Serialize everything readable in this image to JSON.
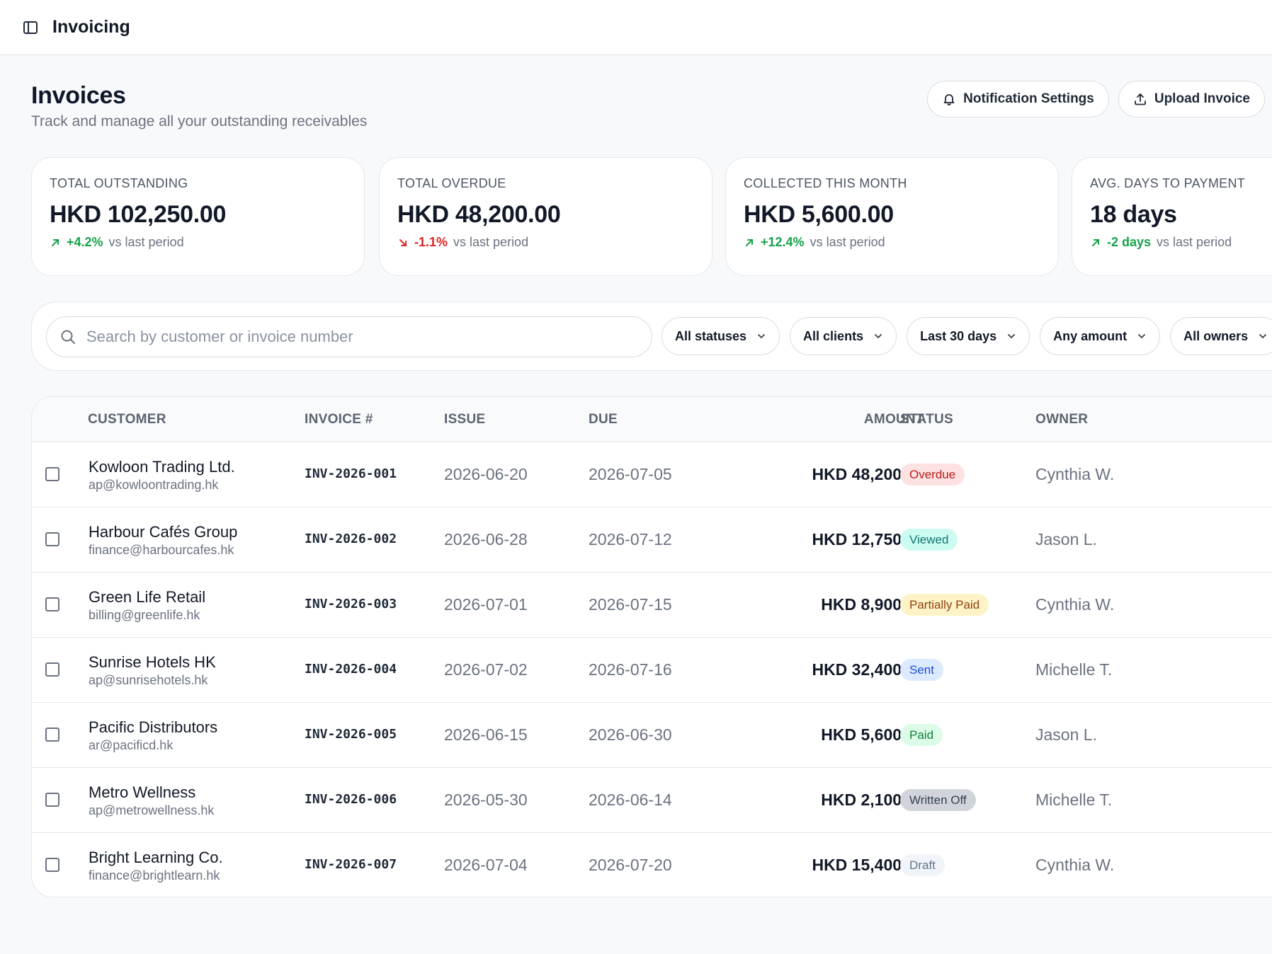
{
  "app": {
    "title": "Invoicing"
  },
  "header": {
    "title": "Invoices",
    "subtitle": "Track and manage all your outstanding receivables",
    "notification_label": "Notification Settings",
    "upload_label": "Upload Invoice"
  },
  "kpis": [
    {
      "label": "TOTAL OUTSTANDING",
      "value": "HKD 102,250.00",
      "delta": "+4.2%",
      "direction": "up",
      "suffix": "vs last period"
    },
    {
      "label": "TOTAL OVERDUE",
      "value": "HKD 48,200.00",
      "delta": "-1.1%",
      "direction": "down",
      "suffix": "vs last period"
    },
    {
      "label": "COLLECTED THIS MONTH",
      "value": "HKD 5,600.00",
      "delta": "+12.4%",
      "direction": "up",
      "suffix": "vs last period"
    },
    {
      "label": "AVG. DAYS TO PAYMENT",
      "value": "18 days",
      "delta": "-2 days",
      "direction": "up",
      "suffix": "vs last period"
    }
  ],
  "search": {
    "placeholder": "Search by customer or invoice number"
  },
  "filters": [
    "All statuses",
    "All clients",
    "Last 30 days",
    "Any amount",
    "All owners"
  ],
  "table": {
    "columns": [
      "CUSTOMER",
      "INVOICE #",
      "ISSUE",
      "DUE",
      "AMOUNT",
      "STATUS",
      "OWNER"
    ],
    "rows": [
      {
        "customer": "Kowloon Trading Ltd.",
        "email": "ap@kowloontrading.hk",
        "invoice": "INV-2026-001",
        "issue": "2026-06-20",
        "due": "2026-07-05",
        "amount": "HKD 48,200.00",
        "status": "Overdue",
        "owner": "Cynthia W."
      },
      {
        "customer": "Harbour Cafés Group",
        "email": "finance@harbourcafes.hk",
        "invoice": "INV-2026-002",
        "issue": "2026-06-28",
        "due": "2026-07-12",
        "amount": "HKD 12,750.00",
        "status": "Viewed",
        "owner": "Jason L."
      },
      {
        "customer": "Green Life Retail",
        "email": "billing@greenlife.hk",
        "invoice": "INV-2026-003",
        "issue": "2026-07-01",
        "due": "2026-07-15",
        "amount": "HKD 8,900.00",
        "status": "Partially Paid",
        "owner": "Cynthia W."
      },
      {
        "customer": "Sunrise Hotels HK",
        "email": "ap@sunrisehotels.hk",
        "invoice": "INV-2026-004",
        "issue": "2026-07-02",
        "due": "2026-07-16",
        "amount": "HKD 32,400.00",
        "status": "Sent",
        "owner": "Michelle T."
      },
      {
        "customer": "Pacific Distributors",
        "email": "ar@pacificd.hk",
        "invoice": "INV-2026-005",
        "issue": "2026-06-15",
        "due": "2026-06-30",
        "amount": "HKD 5,600.00",
        "status": "Paid",
        "owner": "Jason L."
      },
      {
        "customer": "Metro Wellness",
        "email": "ap@metrowellness.hk",
        "invoice": "INV-2026-006",
        "issue": "2026-05-30",
        "due": "2026-06-14",
        "amount": "HKD 2,100.00",
        "status": "Written Off",
        "owner": "Michelle T."
      },
      {
        "customer": "Bright Learning Co.",
        "email": "finance@brightlearn.hk",
        "invoice": "INV-2026-007",
        "issue": "2026-07-04",
        "due": "2026-07-20",
        "amount": "HKD 15,400.00",
        "status": "Draft",
        "owner": "Cynthia W."
      }
    ]
  },
  "colors": {
    "positive": "#16a34a",
    "negative": "#dc2626",
    "status_overdue": "#b91c1c",
    "status_viewed": "#0f766e",
    "status_partial": "#92400e",
    "status_sent": "#1d4ed8",
    "status_paid": "#15803d",
    "status_written_off": "#374151",
    "status_draft": "#64748b"
  },
  "icons": {
    "sidebar_toggle": "sidebar-icon",
    "notification": "bell-icon",
    "upload": "upload-icon",
    "search": "search-icon",
    "dropdown": "chevron-down-icon",
    "delta_up": "arrow-up-right-icon",
    "delta_down": "arrow-down-right-icon"
  }
}
